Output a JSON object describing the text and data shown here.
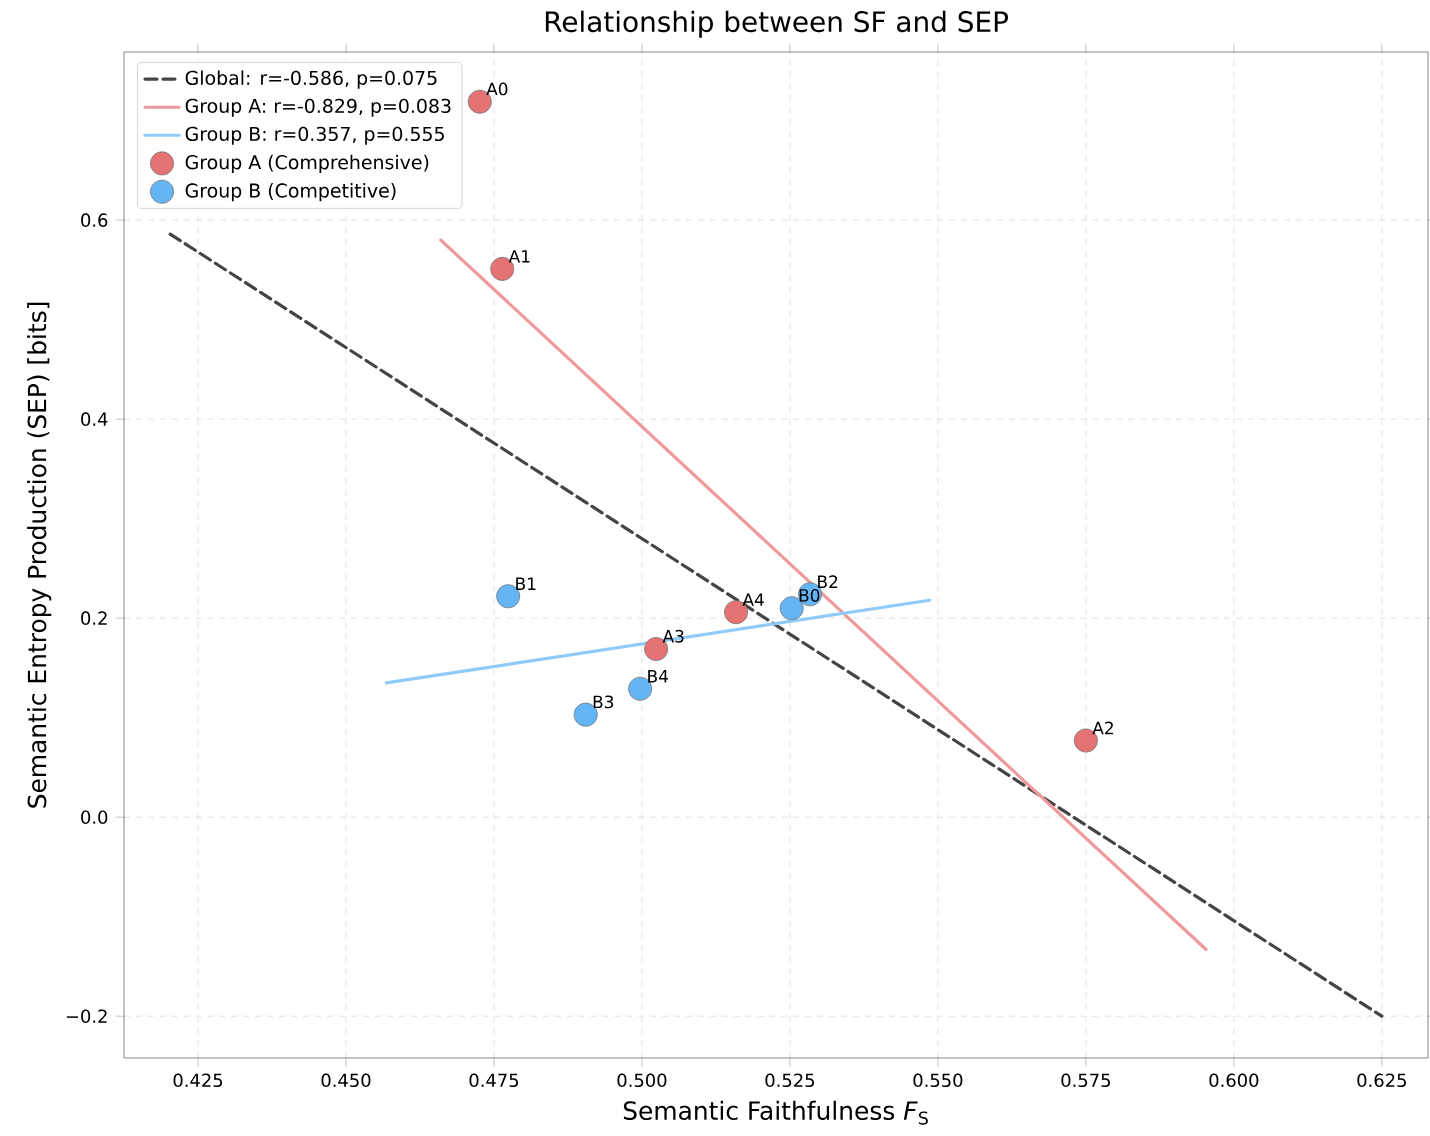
{
  "chart_data": {
    "type": "scatter",
    "title": "Relationship between SF and SEP",
    "xlabel": "Semantic Faithfulness *F*$_{S}$",
    "ylabel": "Semantic Entropy Production (SEP) [bits]",
    "xlim": [
      0.4125,
      0.6328
    ],
    "ylim": [
      -0.242,
      0.769
    ],
    "xticks": [
      0.425,
      {
        "value": 0.45,
        "label": "0.450"
      },
      0.475,
      {
        "value": 0.5,
        "label": "0.500"
      },
      0.525,
      {
        "value": 0.55,
        "label": "0.550"
      },
      0.575,
      {
        "value": 0.6,
        "label": "0.600"
      },
      0.625
    ],
    "yticks": [
      {
        "value": -0.2,
        "label": "−0.2"
      },
      {
        "value": 0.0,
        "label": "0.0"
      },
      0.2,
      0.4,
      0.6
    ],
    "grid": true,
    "legend": "top left",
    "series": [
      {
        "name": "Global: r=-0.586, p=0.075",
        "type": "line",
        "line_style": "dashed",
        "marker": "none",
        "color": "#444444",
        "x": [
          0.4203,
          0.625
        ],
        "values": [
          0.586,
          -0.2
        ]
      },
      {
        "name": "Group A: r=-0.829, p=0.083",
        "type": "line",
        "line_style": "solid",
        "marker": "none",
        "color": "#ef9a9a",
        "x": [
          0.466,
          0.5953
        ],
        "values": [
          0.58,
          -0.133
        ]
      },
      {
        "name": "Group B: r=0.357, p=0.555",
        "type": "line",
        "line_style": "solid",
        "marker": "none",
        "color": "#90caf9",
        "x": [
          0.4568,
          0.5486
        ],
        "values": [
          0.135,
          0.218
        ]
      },
      {
        "name": "Group A (Comprehensive)",
        "marker": "circle",
        "color": "#e57373",
        "x": [
          0.4726,
          0.4764,
          0.575,
          0.5024,
          0.5159
        ],
        "values": [
          0.719,
          0.551,
          0.077,
          0.169,
          0.206
        ]
      },
      {
        "name": "Group B (Competitive)",
        "marker": "circle",
        "color": "#64b5f6",
        "x": [
          0.5253,
          0.4774,
          0.5284,
          0.4905,
          0.4997
        ],
        "values": [
          0.21,
          0.222,
          0.224,
          0.103,
          0.129
        ]
      }
    ],
    "annotations": [
      {
        "text": "A0",
        "x": 0.4726,
        "y": 0.719
      },
      {
        "text": "A1",
        "x": 0.4764,
        "y": 0.551
      },
      {
        "text": "A2",
        "x": 0.575,
        "y": 0.077
      },
      {
        "text": "A3",
        "x": 0.5024,
        "y": 0.169
      },
      {
        "text": "A4",
        "x": 0.5159,
        "y": 0.206
      },
      {
        "text": "B0",
        "x": 0.5253,
        "y": 0.21
      },
      {
        "text": "B1",
        "x": 0.4774,
        "y": 0.222
      },
      {
        "text": "B2",
        "x": 0.5284,
        "y": 0.224
      },
      {
        "text": "B3",
        "x": 0.4905,
        "y": 0.103
      },
      {
        "text": "B4",
        "x": 0.4997,
        "y": 0.129
      }
    ]
  }
}
